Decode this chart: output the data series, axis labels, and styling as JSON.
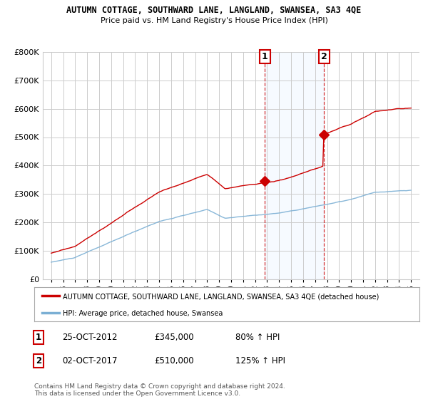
{
  "title1": "AUTUMN COTTAGE, SOUTHWARD LANE, LANGLAND, SWANSEA, SA3 4QE",
  "title2": "Price paid vs. HM Land Registry's House Price Index (HPI)",
  "legend_label1": "AUTUMN COTTAGE, SOUTHWARD LANE, LANGLAND, SWANSEA, SA3 4QE (detached house)",
  "legend_label2": "HPI: Average price, detached house, Swansea",
  "annotation1_label": "1",
  "annotation1_date": "25-OCT-2012",
  "annotation1_price": "£345,000",
  "annotation1_hpi": "80% ↑ HPI",
  "annotation2_label": "2",
  "annotation2_date": "02-OCT-2017",
  "annotation2_price": "£510,000",
  "annotation2_hpi": "125% ↑ HPI",
  "footnote": "Contains HM Land Registry data © Crown copyright and database right 2024.\nThis data is licensed under the Open Government Licence v3.0.",
  "sale1_year": 2012.82,
  "sale1_price": 345000,
  "sale2_year": 2017.75,
  "sale2_price": 510000,
  "red_color": "#cc0000",
  "blue_color": "#7bafd4",
  "background_color": "#ffffff",
  "grid_color": "#cccccc",
  "shaded_color": "#ddeeff",
  "annotation_box_color": "#cc0000",
  "ylim_max": 800000,
  "ylim_min": 0
}
